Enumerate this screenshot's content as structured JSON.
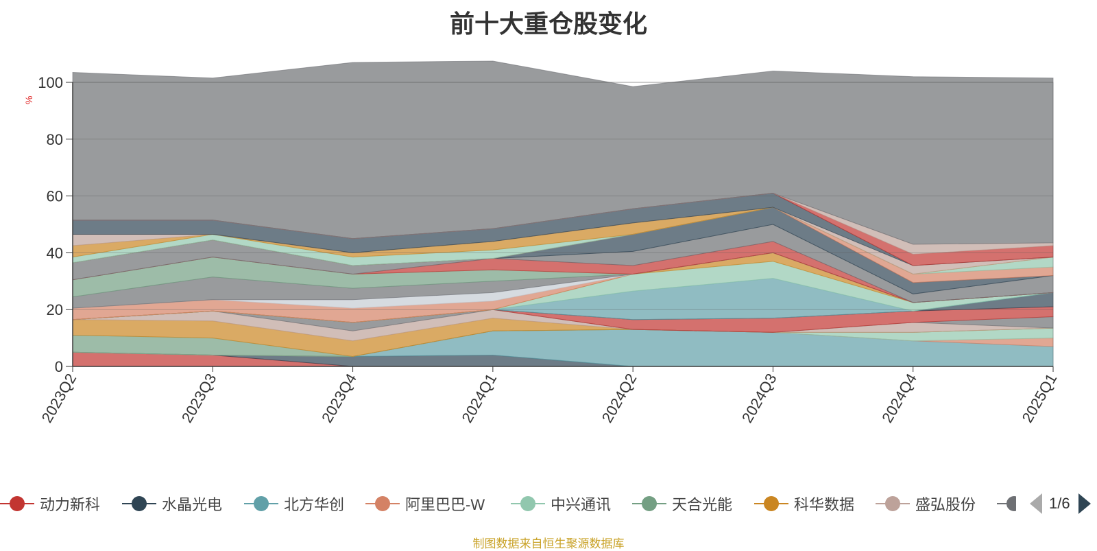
{
  "chart_data": {
    "type": "area",
    "stacked": true,
    "title": "前十大重仓股变化",
    "ylabel": "%",
    "categories": [
      "2023Q2",
      "2023Q3",
      "2023Q4",
      "2024Q1",
      "2024Q2",
      "2024Q3",
      "2024Q4",
      "2025Q1"
    ],
    "y_ticks": [
      "0",
      "20",
      "40",
      "60",
      "80",
      "100"
    ],
    "ylim": [
      0,
      100
    ],
    "grid": true,
    "legend_position": "bottom",
    "series": [
      {
        "name": "动力新科",
        "color": "#c23531",
        "values": [
          5,
          4,
          0,
          0,
          0,
          0,
          0,
          0
        ]
      },
      {
        "name": "水晶光电",
        "color": "#2f4554",
        "values": [
          0,
          0,
          3.5,
          4,
          0,
          0,
          0,
          0
        ]
      },
      {
        "name": "北方华创",
        "color": "#61a0a8",
        "values": [
          0,
          0,
          0,
          8.5,
          13,
          12,
          9,
          7
        ]
      },
      {
        "name": "阿里巴巴-W",
        "color": "#d48265",
        "values": [
          0,
          0,
          0,
          0,
          0,
          0,
          0,
          3
        ]
      },
      {
        "name": "中兴通讯",
        "color": "#91c7ae",
        "values": [
          0,
          0,
          0,
          0,
          0,
          0,
          3,
          3.5
        ]
      },
      {
        "name": "天合光能",
        "color": "#749f83",
        "values": [
          6,
          6,
          0,
          0,
          0,
          0,
          0,
          0
        ]
      },
      {
        "name": "科华数据",
        "color": "#ca8622",
        "values": [
          5.5,
          6,
          5.5,
          4.5,
          0,
          0,
          0,
          0
        ]
      },
      {
        "name": "盛弘股份",
        "color": "#bda29a",
        "values": [
          0,
          3.5,
          3.5,
          3,
          0,
          0,
          3.5,
          0
        ]
      },
      {
        "series_colour": "#6e7074",
        "values": [
          0,
          0,
          3,
          0,
          0,
          0,
          0,
          4
        ]
      },
      {
        "series_colour": "#c23531",
        "values": [
          0,
          0,
          0,
          0,
          3.5,
          5,
          4,
          3.5
        ]
      },
      {
        "series_colour": "#2f4554",
        "values": [
          0,
          0,
          0,
          0,
          0,
          0,
          0,
          5
        ]
      },
      {
        "series_colour": "#61a0a8",
        "values": [
          0,
          0,
          0,
          0,
          10,
          14,
          0,
          0
        ]
      },
      {
        "series_colour": "#91c7ae",
        "values": [
          0,
          0,
          0,
          0,
          6,
          6,
          3,
          0
        ]
      },
      {
        "series_colour": "#ca8622",
        "values": [
          0,
          0,
          0,
          0,
          0,
          3,
          0,
          0
        ]
      },
      {
        "series_colour": "#d48265",
        "values": [
          4,
          4,
          5,
          3,
          0,
          0,
          0,
          0
        ]
      },
      {
        "series_colour": "#c4ccd3",
        "values": [
          0,
          0,
          3,
          3,
          0,
          0,
          0,
          0
        ]
      },
      {
        "series_colour": "#6e7074",
        "values": [
          4,
          8,
          4,
          4,
          0,
          0,
          0,
          0
        ]
      },
      {
        "series_colour": "#749f83",
        "values": [
          6,
          7,
          5,
          4,
          0,
          0,
          0,
          0
        ]
      },
      {
        "series_colour": "#c23531",
        "values": [
          0,
          0,
          0,
          4,
          3,
          4,
          0,
          0
        ]
      },
      {
        "series_colour": "#6e7074",
        "values": [
          6,
          6,
          3,
          0,
          5,
          6,
          3,
          6
        ]
      },
      {
        "series_colour": "#2f4554",
        "values": [
          0,
          0,
          0,
          0,
          6,
          6,
          4,
          0
        ]
      },
      {
        "series_colour": "#d48265",
        "values": [
          0,
          0,
          0,
          0,
          0,
          0,
          3,
          3
        ]
      },
      {
        "series_colour": "#91c7ae",
        "values": [
          2,
          2,
          3,
          3,
          0,
          0,
          0,
          3.5
        ]
      },
      {
        "series_colour": "#ca8622",
        "values": [
          4,
          0,
          1.5,
          3,
          4,
          0,
          0,
          0
        ]
      },
      {
        "series_colour": "#bda29a",
        "values": [
          4,
          0,
          0,
          0,
          0,
          0,
          3,
          0
        ]
      },
      {
        "series_colour": "#2f4554",
        "values": [
          5,
          5,
          5,
          4.5,
          5,
          5,
          0,
          0
        ]
      },
      {
        "series_colour": "#c23531",
        "values": [
          0,
          0,
          0,
          0,
          0,
          0,
          4,
          4
        ]
      },
      {
        "series_colour": "#bda29a",
        "values": [
          0,
          0,
          0,
          0,
          0,
          0,
          3.5,
          1
        ]
      },
      {
        "series_colour": "#6e7074",
        "values": [
          52,
          50,
          62,
          59,
          43,
          43,
          59,
          58
        ]
      }
    ]
  },
  "legend": {
    "items": [
      {
        "label": "动力新科",
        "color": "#c23531"
      },
      {
        "label": "水晶光电",
        "color": "#2f4554"
      },
      {
        "label": "北方华创",
        "color": "#61a0a8"
      },
      {
        "label": "阿里巴巴-W",
        "color": "#d48265"
      },
      {
        "label": "中兴通讯",
        "color": "#91c7ae"
      },
      {
        "label": "天合光能",
        "color": "#749f83"
      },
      {
        "label": "科华数据",
        "color": "#ca8622"
      },
      {
        "label": "盛弘股份",
        "color": "#bda29a"
      }
    ],
    "page_text": "1/6"
  },
  "source_note": "制图数据来自恒生聚源数据库"
}
